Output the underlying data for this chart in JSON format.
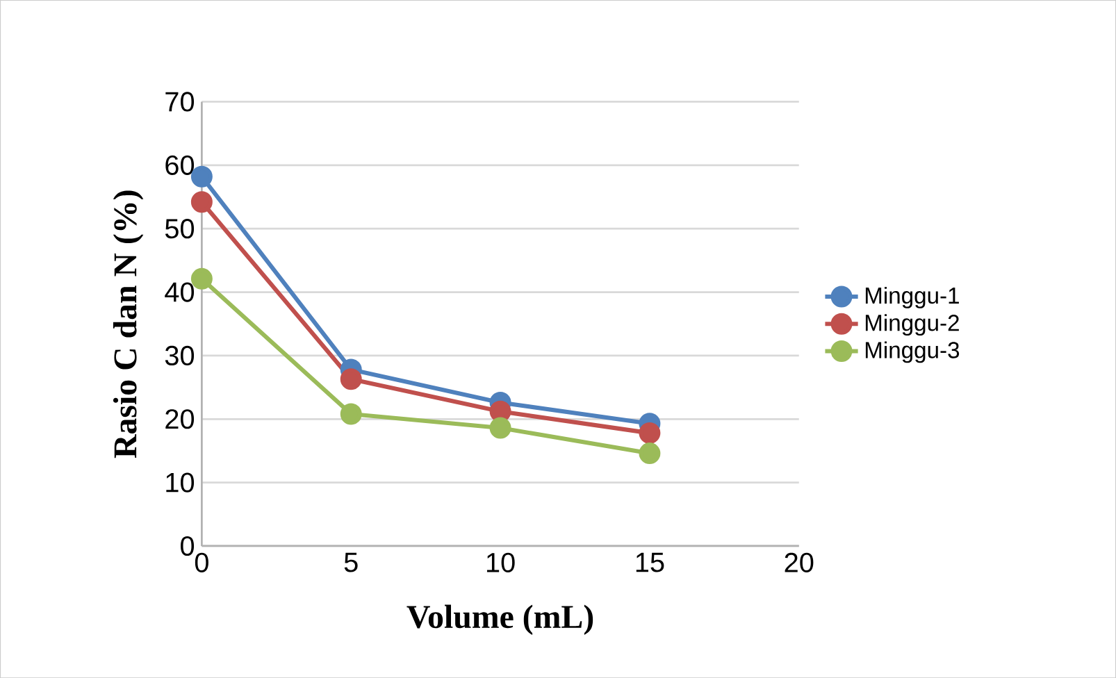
{
  "chart_data": {
    "type": "line",
    "xlabel": "Volume (mL)",
    "ylabel": "Rasio C dan N (%)",
    "x": [
      0,
      5,
      10,
      15
    ],
    "xlim": [
      0,
      20
    ],
    "xticks": [
      0,
      5,
      10,
      15,
      20
    ],
    "ylim": [
      0,
      70
    ],
    "yticks": [
      0,
      10,
      20,
      30,
      40,
      50,
      60,
      70
    ],
    "grid": "y",
    "legend": "right",
    "marker": "circle",
    "line_style": "solid",
    "series": [
      {
        "name": "Minggu-1",
        "color": "#4f81bd",
        "values": [
          58.2,
          27.8,
          22.6,
          19.3
        ]
      },
      {
        "name": "Minggu-2",
        "color": "#c0504d",
        "values": [
          54.2,
          26.3,
          21.2,
          17.8
        ]
      },
      {
        "name": "Minggu-3",
        "color": "#9bbb59",
        "values": [
          42.1,
          20.8,
          18.6,
          14.6
        ]
      }
    ]
  }
}
